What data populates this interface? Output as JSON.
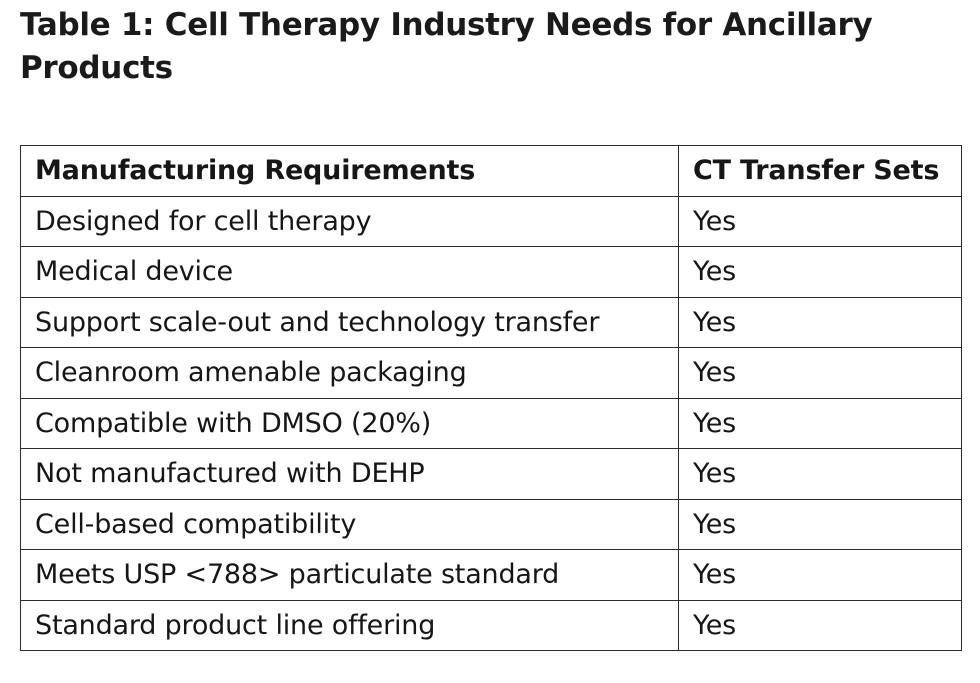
{
  "title": "Table 1: Cell Therapy Industry Needs for Ancillary Products",
  "table": {
    "headers": [
      "Manufacturing Requirements",
      "CT Transfer Sets"
    ],
    "rows": [
      [
        "Designed for cell therapy",
        "Yes"
      ],
      [
        "Medical device",
        "Yes"
      ],
      [
        "Support scale-out and technology transfer",
        "Yes"
      ],
      [
        "Cleanroom amenable packaging",
        "Yes"
      ],
      [
        "Compatible with DMSO (20%)",
        "Yes"
      ],
      [
        "Not manufactured with DEHP",
        "Yes"
      ],
      [
        "Cell-based compatibility",
        "Yes"
      ],
      [
        "Meets USP <788> particulate standard",
        "Yes"
      ],
      [
        "Standard product line offering",
        "Yes"
      ]
    ]
  }
}
